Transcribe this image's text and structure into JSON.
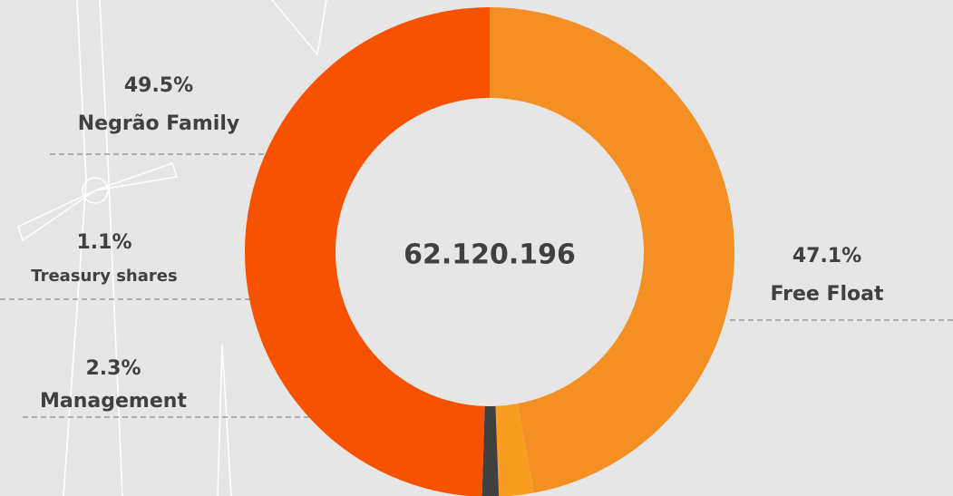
{
  "chart_data": {
    "type": "donut",
    "categories": [
      "Free Float",
      "Management",
      "Treasury shares",
      "Negrão Family"
    ],
    "values": [
      47.1,
      2.3,
      1.1,
      49.5
    ],
    "value_labels": [
      "47.1%",
      "2.3%",
      "1.1%",
      "49.5%"
    ],
    "colors": [
      "#f38f23",
      "#f99d20",
      "#404040",
      "#f75200"
    ],
    "center_label": "62.120.196"
  }
}
